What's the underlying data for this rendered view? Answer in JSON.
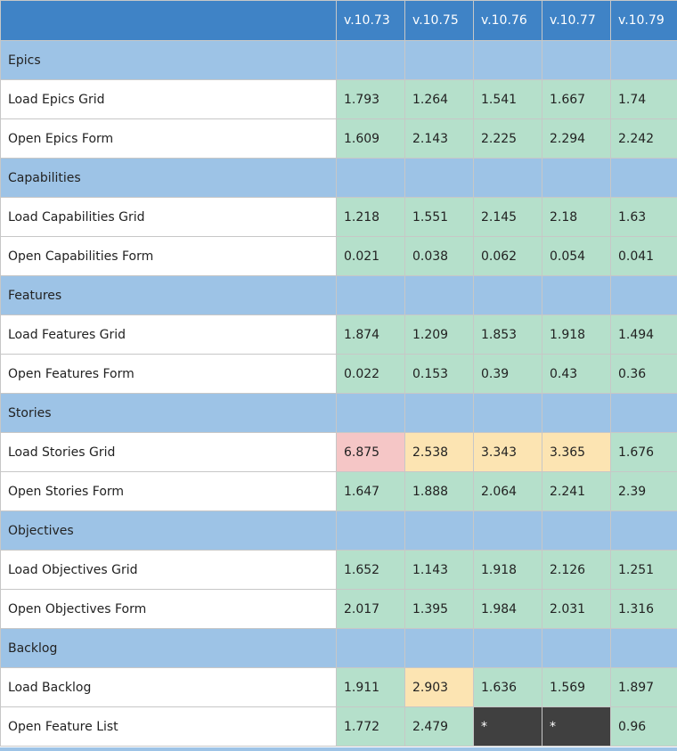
{
  "header": {
    "versions": [
      "v.10.73",
      "v.10.75",
      "v.10.76",
      "v.10.77",
      "v.10.79"
    ]
  },
  "status_colors": {
    "ok": "#b5e0cb",
    "warn": "#fce4b2",
    "bad": "#f5c6c6",
    "na": "#404040",
    "section": "#9dc3e6",
    "header": "#3f83c6"
  },
  "sections": [
    {
      "title": "Epics",
      "rows": [
        {
          "label": "Load Epics Grid",
          "values": [
            "1.793",
            "1.264",
            "1.541",
            "1.667",
            "1.74"
          ],
          "status": [
            "ok",
            "ok",
            "ok",
            "ok",
            "ok"
          ]
        },
        {
          "label": "Open Epics Form",
          "values": [
            "1.609",
            "2.143",
            "2.225",
            "2.294",
            "2.242"
          ],
          "status": [
            "ok",
            "ok",
            "ok",
            "ok",
            "ok"
          ]
        }
      ]
    },
    {
      "title": "Capabilities",
      "rows": [
        {
          "label": "Load Capabilities Grid",
          "values": [
            "1.218",
            "1.551",
            "2.145",
            "2.18",
            "1.63"
          ],
          "status": [
            "ok",
            "ok",
            "ok",
            "ok",
            "ok"
          ]
        },
        {
          "label": "Open Capabilities Form",
          "values": [
            "0.021",
            "0.038",
            "0.062",
            "0.054",
            "0.041"
          ],
          "status": [
            "ok",
            "ok",
            "ok",
            "ok",
            "ok"
          ]
        }
      ]
    },
    {
      "title": "Features",
      "rows": [
        {
          "label": "Load Features Grid",
          "values": [
            "1.874",
            "1.209",
            "1.853",
            "1.918",
            "1.494"
          ],
          "status": [
            "ok",
            "ok",
            "ok",
            "ok",
            "ok"
          ]
        },
        {
          "label": "Open Features Form",
          "values": [
            "0.022",
            "0.153",
            "0.39",
            "0.43",
            "0.36"
          ],
          "status": [
            "ok",
            "ok",
            "ok",
            "ok",
            "ok"
          ]
        }
      ]
    },
    {
      "title": "Stories",
      "rows": [
        {
          "label": "Load Stories Grid",
          "values": [
            "6.875",
            "2.538",
            "3.343",
            "3.365",
            "1.676"
          ],
          "status": [
            "bad",
            "warn",
            "warn",
            "warn",
            "ok"
          ]
        },
        {
          "label": "Open Stories Form",
          "values": [
            "1.647",
            "1.888",
            "2.064",
            "2.241",
            "2.39"
          ],
          "status": [
            "ok",
            "ok",
            "ok",
            "ok",
            "ok"
          ]
        }
      ]
    },
    {
      "title": "Objectives",
      "rows": [
        {
          "label": "Load Objectives Grid",
          "values": [
            "1.652",
            "1.143",
            "1.918",
            "2.126",
            "1.251"
          ],
          "status": [
            "ok",
            "ok",
            "ok",
            "ok",
            "ok"
          ]
        },
        {
          "label": "Open Objectives Form",
          "values": [
            "2.017",
            "1.395",
            "1.984",
            "2.031",
            "1.316"
          ],
          "status": [
            "ok",
            "ok",
            "ok",
            "ok",
            "ok"
          ]
        }
      ]
    },
    {
      "title": "Backlog",
      "rows": [
        {
          "label": "Load Backlog",
          "values": [
            "1.911",
            "2.903",
            "1.636",
            "1.569",
            "1.897"
          ],
          "status": [
            "ok",
            "warn",
            "ok",
            "ok",
            "ok"
          ]
        },
        {
          "label": "Open Feature List",
          "values": [
            "1.772",
            "2.479",
            "*",
            "*",
            "0.96"
          ],
          "status": [
            "ok",
            "ok",
            "na",
            "na",
            "ok"
          ]
        }
      ]
    }
  ]
}
